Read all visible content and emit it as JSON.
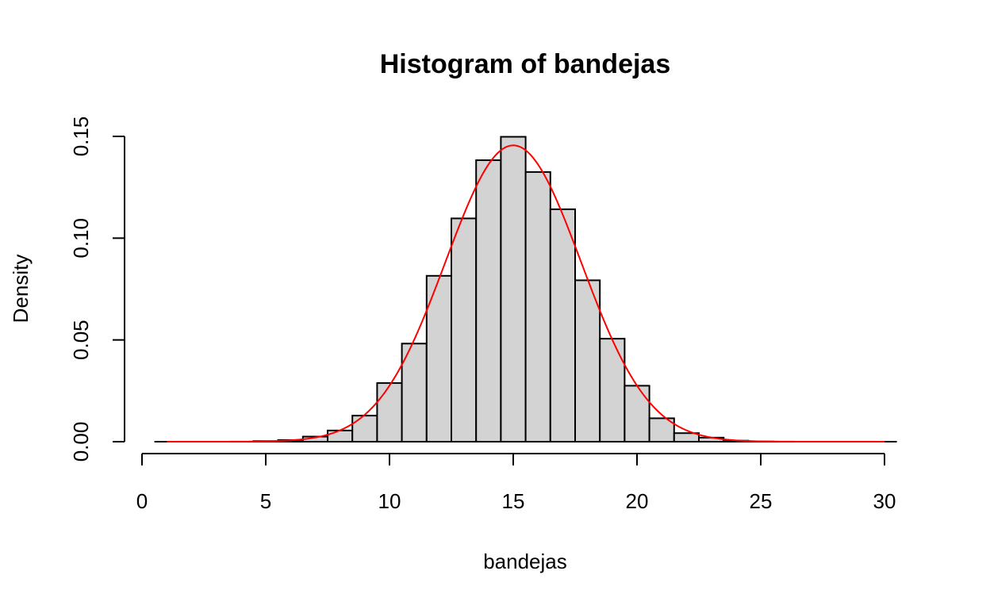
{
  "chart_data": {
    "type": "bar",
    "title": "Histogram of bandejas",
    "xlabel": "bandejas",
    "ylabel": "Density",
    "xlim": [
      0,
      30
    ],
    "ylim": [
      0,
      0.15
    ],
    "x_ticks": [
      "0",
      "5",
      "10",
      "15",
      "20",
      "25",
      "30"
    ],
    "y_ticks": [
      "0.00",
      "0.05",
      "0.10",
      "0.15"
    ],
    "bins": [
      {
        "start": 0.5,
        "end": 1.5,
        "density": 0.0
      },
      {
        "start": 1.5,
        "end": 2.5,
        "density": 0.0
      },
      {
        "start": 2.5,
        "end": 3.5,
        "density": 0.0
      },
      {
        "start": 3.5,
        "end": 4.5,
        "density": 0.0
      },
      {
        "start": 4.5,
        "end": 5.5,
        "density": 0.0003
      },
      {
        "start": 5.5,
        "end": 6.5,
        "density": 0.0008
      },
      {
        "start": 6.5,
        "end": 7.5,
        "density": 0.0025
      },
      {
        "start": 7.5,
        "end": 8.5,
        "density": 0.0055
      },
      {
        "start": 8.5,
        "end": 9.5,
        "density": 0.0128
      },
      {
        "start": 9.5,
        "end": 10.5,
        "density": 0.0288
      },
      {
        "start": 10.5,
        "end": 11.5,
        "density": 0.0482
      },
      {
        "start": 11.5,
        "end": 12.5,
        "density": 0.0815
      },
      {
        "start": 12.5,
        "end": 13.5,
        "density": 0.1097
      },
      {
        "start": 13.5,
        "end": 14.5,
        "density": 0.1383
      },
      {
        "start": 14.5,
        "end": 15.5,
        "density": 0.1498
      },
      {
        "start": 15.5,
        "end": 16.5,
        "density": 0.1325
      },
      {
        "start": 16.5,
        "end": 17.5,
        "density": 0.1142
      },
      {
        "start": 17.5,
        "end": 18.5,
        "density": 0.0793
      },
      {
        "start": 18.5,
        "end": 19.5,
        "density": 0.0506
      },
      {
        "start": 19.5,
        "end": 20.5,
        "density": 0.0275
      },
      {
        "start": 20.5,
        "end": 21.5,
        "density": 0.0115
      },
      {
        "start": 21.5,
        "end": 22.5,
        "density": 0.0042
      },
      {
        "start": 22.5,
        "end": 23.5,
        "density": 0.002
      },
      {
        "start": 23.5,
        "end": 24.5,
        "density": 0.0005
      },
      {
        "start": 24.5,
        "end": 25.5,
        "density": 0.0001
      },
      {
        "start": 25.5,
        "end": 26.5,
        "density": 0.0
      },
      {
        "start": 26.5,
        "end": 27.5,
        "density": 0.0
      },
      {
        "start": 27.5,
        "end": 28.5,
        "density": 0.0
      },
      {
        "start": 28.5,
        "end": 29.5,
        "density": 0.0
      },
      {
        "start": 29.5,
        "end": 30.5,
        "density": 0.0
      }
    ],
    "curve": {
      "type": "normal",
      "mean": 15.0,
      "sd": 2.74,
      "x_range": [
        1,
        30
      ],
      "color": "#ff0000"
    },
    "bar_fill": "#d3d3d3",
    "bar_stroke": "#000000",
    "grid": false,
    "legend": "none"
  }
}
